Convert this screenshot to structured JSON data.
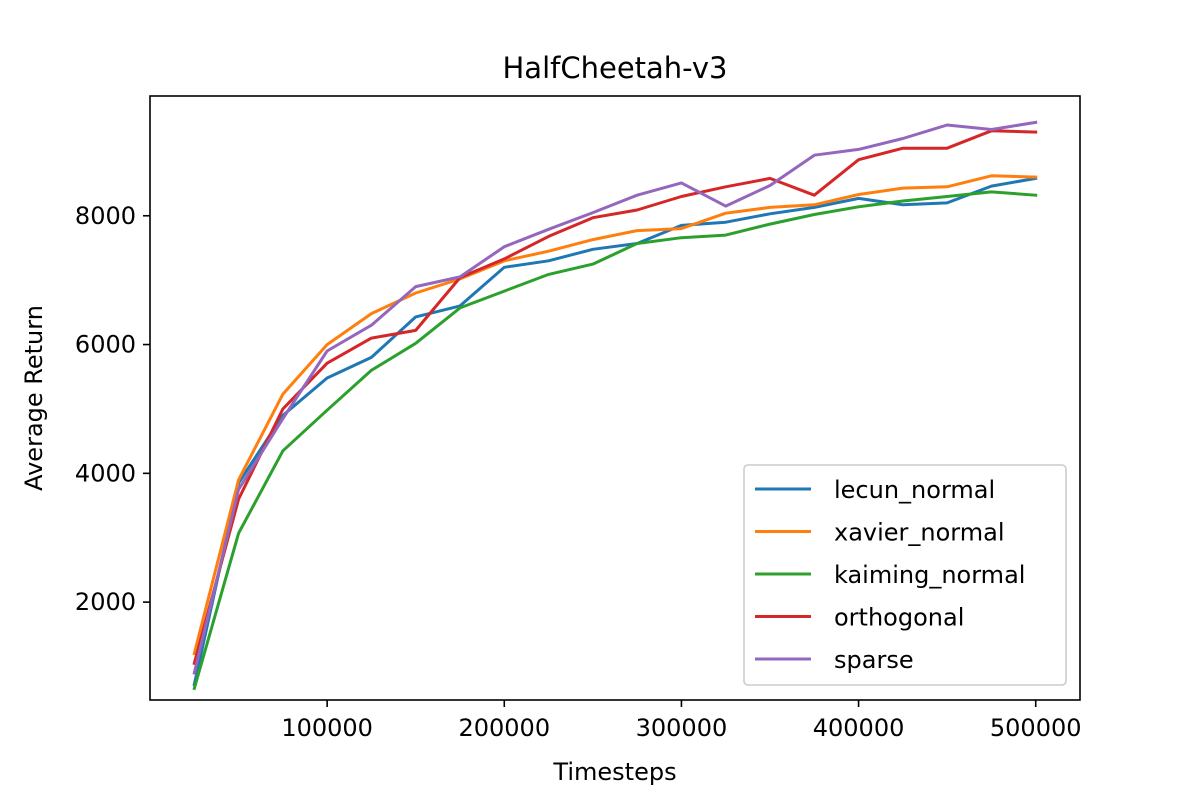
{
  "chart_data": {
    "type": "line",
    "title": "HalfCheetah-v3",
    "xlabel": "Timesteps",
    "ylabel": "Average Return",
    "xlim": [
      0,
      525000
    ],
    "ylim": [
      480,
      9860
    ],
    "x_ticks": [
      100000,
      200000,
      300000,
      400000,
      500000
    ],
    "x_tick_labels": [
      "100000",
      "200000",
      "300000",
      "400000",
      "500000"
    ],
    "y_ticks": [
      2000,
      4000,
      6000,
      8000
    ],
    "y_tick_labels": [
      "2000",
      "4000",
      "6000",
      "8000"
    ],
    "grid": false,
    "legend_position": "bottom-right",
    "x": [
      25000,
      50000,
      75000,
      100000,
      125000,
      150000,
      175000,
      200000,
      225000,
      250000,
      275000,
      300000,
      325000,
      350000,
      375000,
      400000,
      425000,
      450000,
      475000,
      500000
    ],
    "series": [
      {
        "name": "lecun_normal",
        "color": "#1f77b4",
        "values": [
          720,
          3850,
          4900,
          5480,
          5800,
          6430,
          6600,
          7200,
          7300,
          7480,
          7570,
          7850,
          7900,
          8030,
          8130,
          8270,
          8170,
          8200,
          8460,
          8580
        ]
      },
      {
        "name": "xavier_normal",
        "color": "#ff7f0e",
        "values": [
          1200,
          3900,
          5230,
          6000,
          6480,
          6800,
          7020,
          7300,
          7450,
          7630,
          7770,
          7800,
          8040,
          8130,
          8170,
          8330,
          8430,
          8450,
          8620,
          8600
        ]
      },
      {
        "name": "kaiming_normal",
        "color": "#2ca02c",
        "values": [
          660,
          3070,
          4350,
          4980,
          5600,
          6020,
          6570,
          6830,
          7090,
          7250,
          7570,
          7660,
          7700,
          7870,
          8020,
          8140,
          8230,
          8300,
          8370,
          8320
        ]
      },
      {
        "name": "orthogonal",
        "color": "#d62728",
        "values": [
          1050,
          3600,
          5000,
          5710,
          6100,
          6220,
          7040,
          7330,
          7680,
          7970,
          8090,
          8300,
          8450,
          8580,
          8320,
          8870,
          9050,
          9050,
          9320,
          9300
        ]
      },
      {
        "name": "sparse",
        "color": "#9467bd",
        "values": [
          900,
          3750,
          4850,
          5900,
          6300,
          6900,
          7050,
          7520,
          7790,
          8050,
          8320,
          8510,
          8150,
          8470,
          8940,
          9030,
          9200,
          9410,
          9340,
          9450
        ]
      }
    ]
  }
}
